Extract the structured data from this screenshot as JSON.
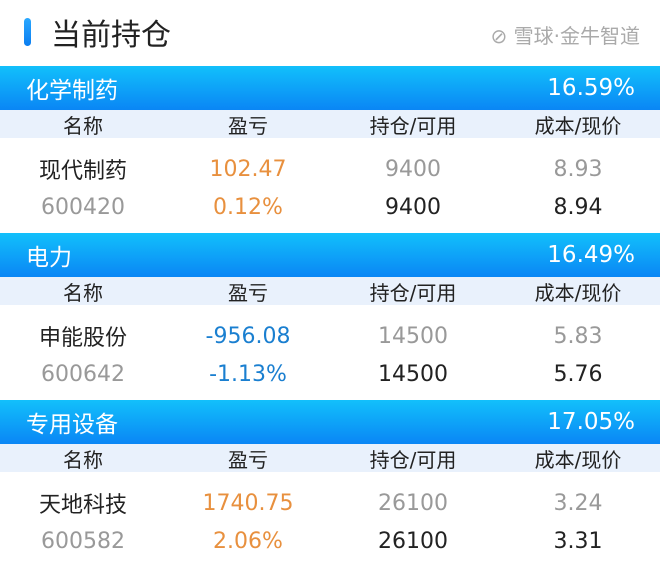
{
  "page_title": "当前持仓",
  "columns": [
    "名称",
    "盈亏",
    "持仓/可用",
    "成本/现价"
  ],
  "sections": [
    {
      "industry": "化学制药",
      "ratio": "16.59%",
      "name": "现代制药",
      "code": "600420",
      "pnl": "102.47",
      "pnl_pct": "0.12%",
      "position": "9400",
      "available": "9400",
      "cost": "8.93",
      "price": "8.94",
      "trend": "up"
    },
    {
      "industry": "电力",
      "ratio": "16.49%",
      "name": "申能股份",
      "code": "600642",
      "pnl": "-956.08",
      "pnl_pct": "-1.13%",
      "position": "14500",
      "available": "14500",
      "cost": "5.83",
      "price": "5.76",
      "trend": "down"
    },
    {
      "industry": "专用设备",
      "ratio": "17.05%",
      "name": "天地科技",
      "code": "600582",
      "pnl": "1740.75",
      "pnl_pct": "2.06%",
      "position": "26100",
      "available": "26100",
      "cost": "3.24",
      "price": "3.31",
      "trend": "up"
    }
  ],
  "watermark": "雪球·金牛智道",
  "colors": {
    "header": "#0a86f5",
    "gain": "#e8903e",
    "loss": "#1a7fd0"
  }
}
